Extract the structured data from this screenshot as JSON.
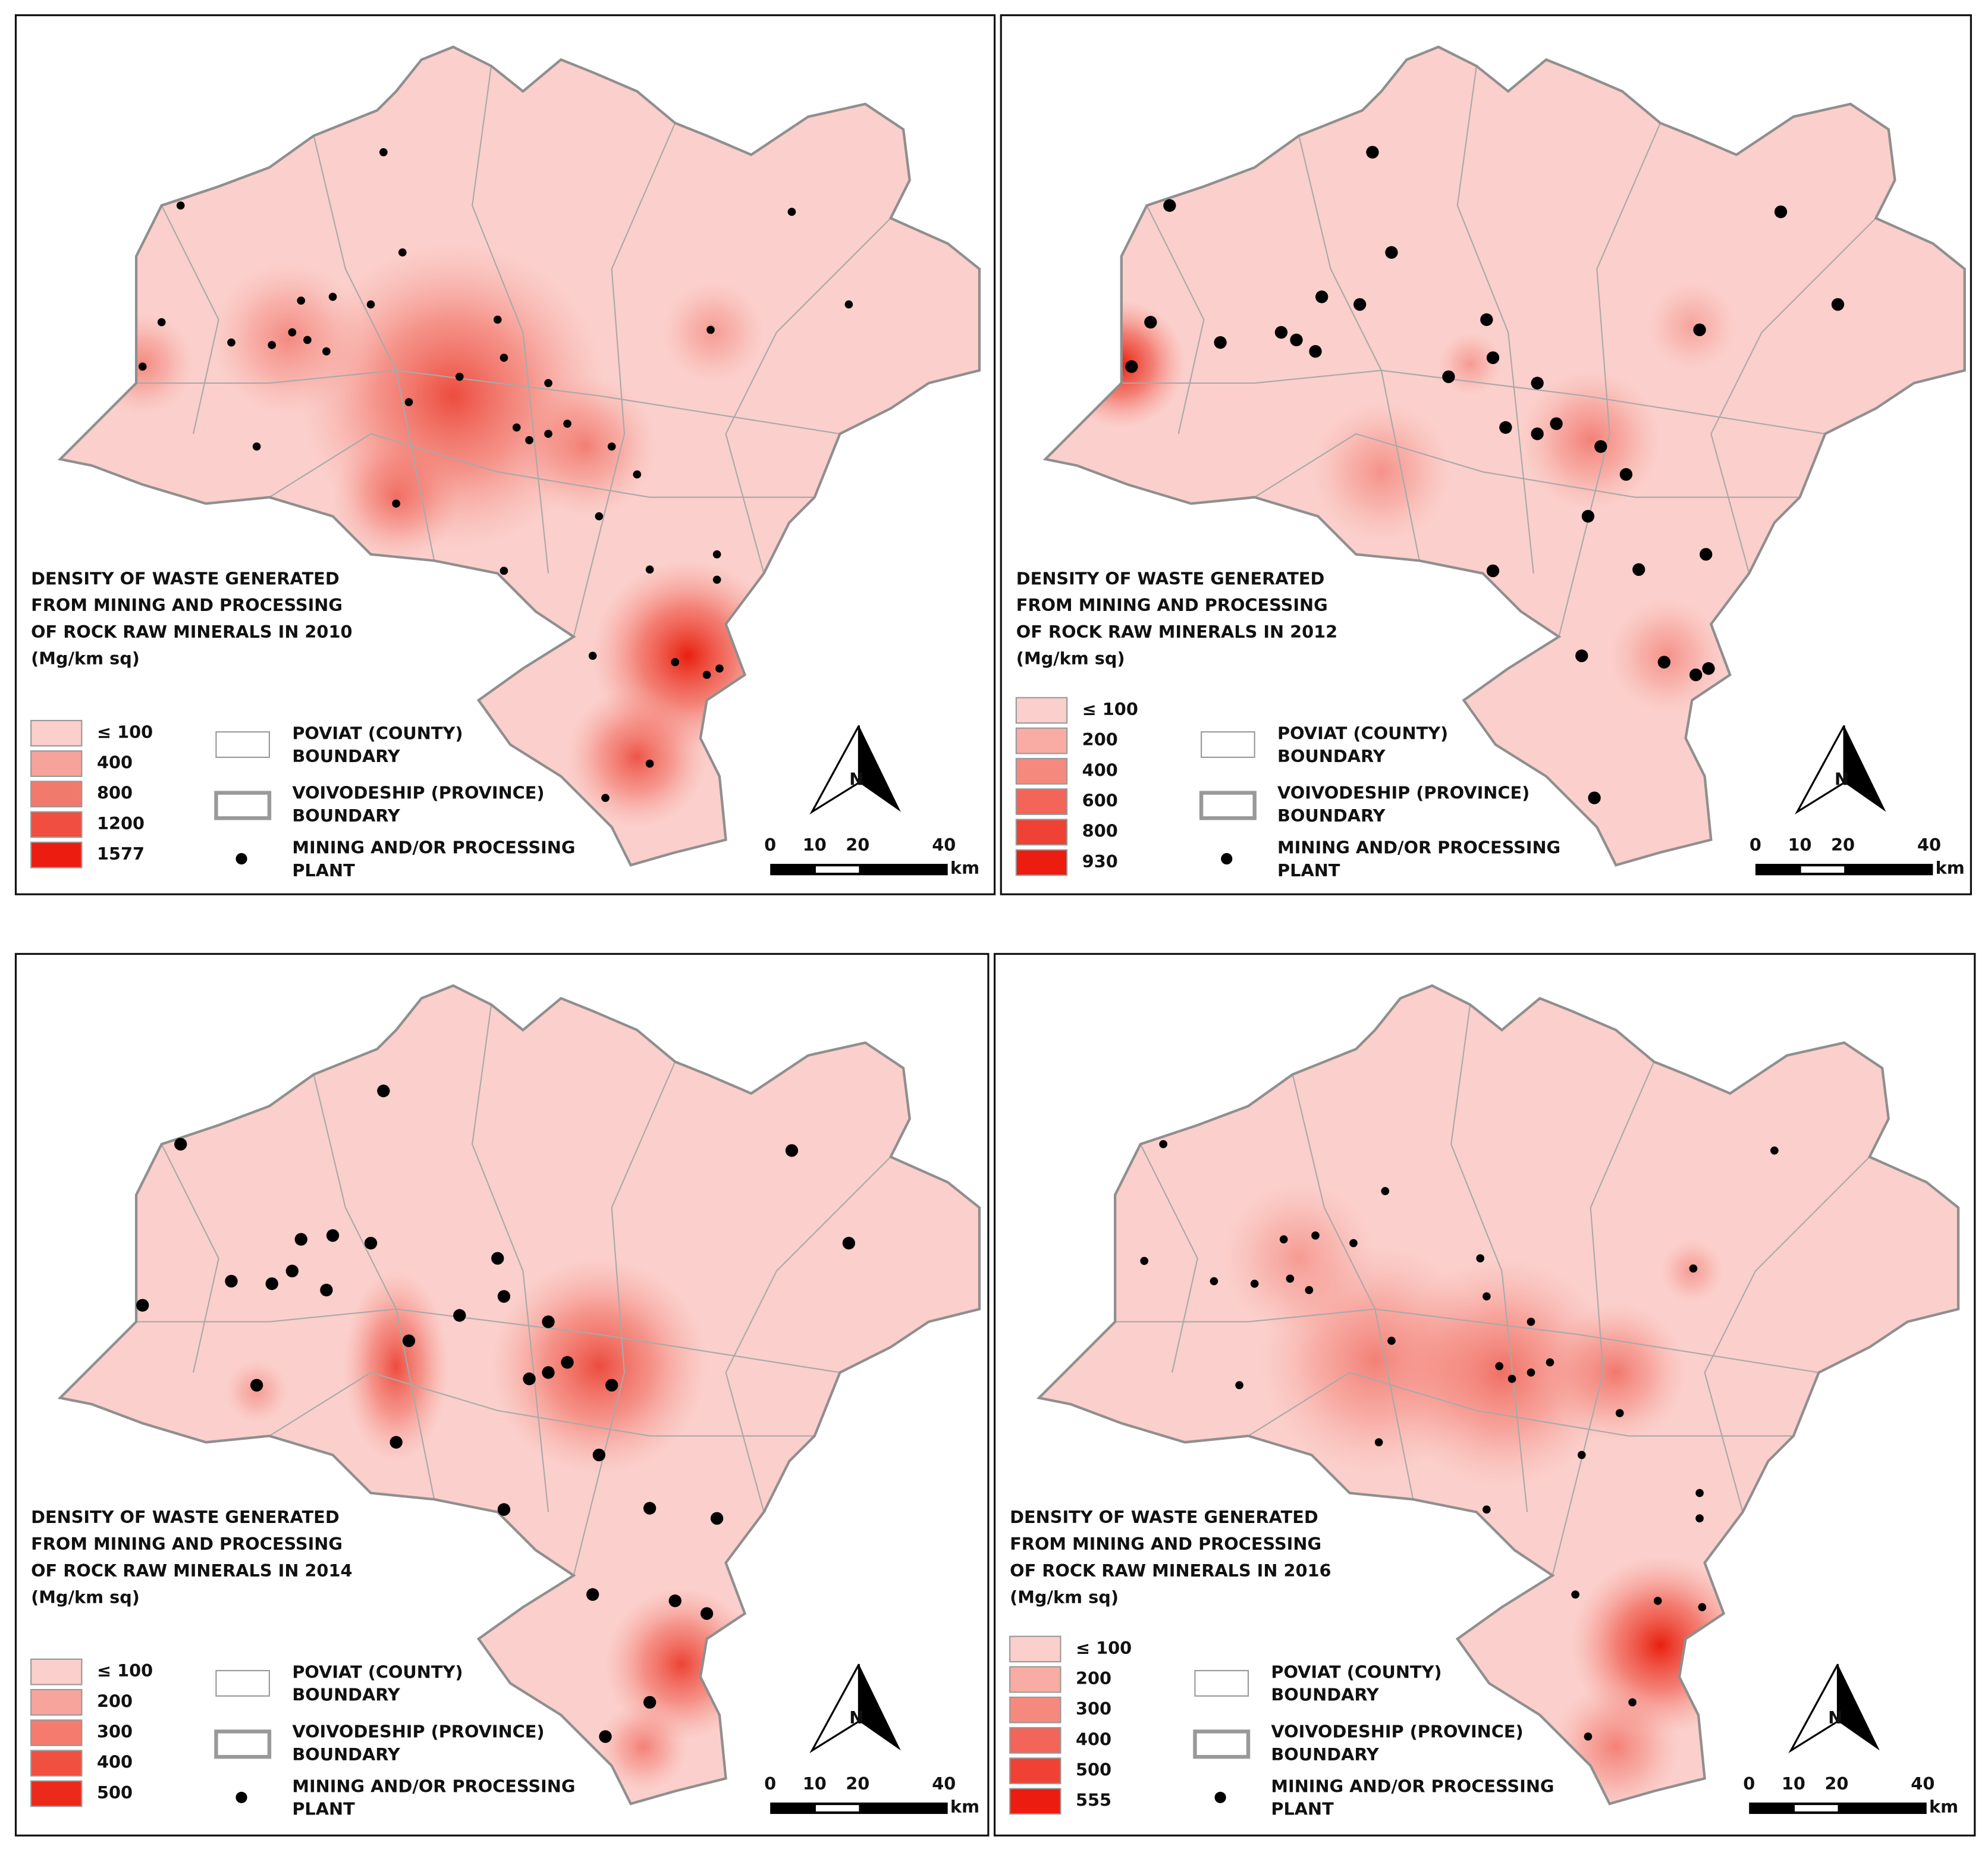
{
  "panels": [
    {
      "title_lines": [
        "DENSITY OF WASTE GENERATED",
        "FROM MINING AND PROCESSING",
        "OF ROCK RAW MINERALS IN 2010"
      ],
      "unit": "(Mg/km sq)",
      "classes": [
        {
          "label": "≤ 100",
          "color": "#fbcfcb"
        },
        {
          "label": "400",
          "color": "#f6a49b"
        },
        {
          "label": "800",
          "color": "#f27a6d"
        },
        {
          "label": "1200",
          "color": "#ef4e40"
        },
        {
          "label": "1577",
          "color": "#ec1c10"
        }
      ]
    },
    {
      "title_lines": [
        "DENSITY OF WASTE GENERATED",
        "FROM MINING AND PROCESSING",
        "OF ROCK RAW MINERALS IN 2012"
      ],
      "unit": "(Mg/km sq)",
      "classes": [
        {
          "label": "≤ 100",
          "color": "#fbcfcb"
        },
        {
          "label": "200",
          "color": "#f8aca4"
        },
        {
          "label": "400",
          "color": "#f5897e"
        },
        {
          "label": "600",
          "color": "#f26558"
        },
        {
          "label": "800",
          "color": "#ef4234"
        },
        {
          "label": "930",
          "color": "#ec1c10"
        }
      ]
    },
    {
      "title_lines": [
        "DENSITY OF WASTE GENERATED",
        "FROM MINING AND PROCESSING",
        "OF ROCK RAW MINERALS IN 2014"
      ],
      "unit": "(Mg/km sq)",
      "classes": [
        {
          "label": "≤ 100",
          "color": "#fbcfcb"
        },
        {
          "label": "200",
          "color": "#f7a59c"
        },
        {
          "label": "300",
          "color": "#f47b6e"
        },
        {
          "label": "400",
          "color": "#f05040"
        },
        {
          "label": "500",
          "color": "#ec2a1c"
        }
      ]
    },
    {
      "title_lines": [
        "DENSITY OF WASTE GENERATED",
        "FROM MINING AND PROCESSING",
        "OF ROCK RAW MINERALS IN 2016"
      ],
      "unit": "(Mg/km sq)",
      "classes": [
        {
          "label": "≤ 100",
          "color": "#fbcfcb"
        },
        {
          "label": "200",
          "color": "#f8aca4"
        },
        {
          "label": "300",
          "color": "#f5897e"
        },
        {
          "label": "400",
          "color": "#f26558"
        },
        {
          "label": "500",
          "color": "#ef4234"
        },
        {
          "label": "555",
          "color": "#ec1c10"
        }
      ]
    }
  ],
  "legend": {
    "county": [
      "POVIAT (COUNTY)",
      "BOUNDARY"
    ],
    "province": [
      "VOIVODESHIP (PROVINCE)",
      "BOUNDARY"
    ],
    "plant": [
      "MINING AND/OR PROCESSING",
      "PLANT"
    ]
  },
  "scale": {
    "ticks": [
      "0",
      "10",
      "20",
      "40"
    ],
    "unit": "km"
  },
  "north": "N"
}
